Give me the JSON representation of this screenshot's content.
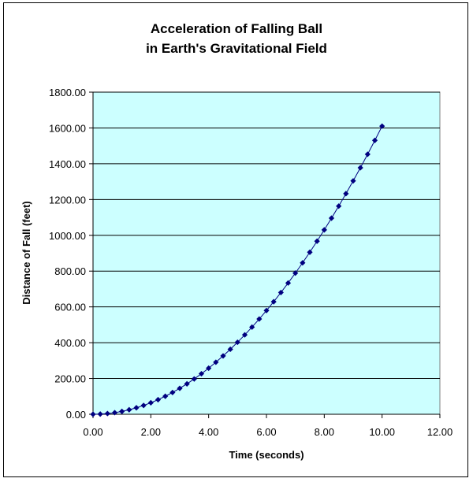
{
  "chart_data": {
    "type": "scatter",
    "title_lines": [
      "Acceleration of Falling Ball",
      "in Earth's Gravitational Field"
    ],
    "xlabel": "Time (seconds)",
    "ylabel": "Distance of Fall (feet)",
    "xlim": [
      0,
      12
    ],
    "ylim": [
      0,
      1800
    ],
    "x_ticks": [
      "0.00",
      "2.00",
      "4.00",
      "6.00",
      "8.00",
      "10.00",
      "12.00"
    ],
    "y_ticks": [
      "0.00",
      "200.00",
      "400.00",
      "600.00",
      "800.00",
      "1000.00",
      "1200.00",
      "1400.00",
      "1600.00",
      "1800.00"
    ],
    "grid": true,
    "legend": "none",
    "colors": {
      "plot_background": "#ccffff",
      "marker": "#000080",
      "line": "#000080",
      "gridline": "#000000"
    },
    "series": [
      {
        "x": [
          0,
          0.25,
          0.5,
          0.75,
          1,
          1.25,
          1.5,
          1.75,
          2,
          2.25,
          2.5,
          2.75,
          3,
          3.25,
          3.5,
          3.75,
          4,
          4.25,
          4.5,
          4.75,
          5,
          5.25,
          5.5,
          5.75,
          6,
          6.25,
          6.5,
          6.75,
          7,
          7.25,
          7.5,
          7.75,
          8,
          8.25,
          8.5,
          8.75,
          9,
          9.25,
          9.5,
          9.75,
          10
        ],
        "y": [
          0,
          1.01,
          4.03,
          9.06,
          16.1,
          25.16,
          36.23,
          49.31,
          64.4,
          81.51,
          100.63,
          121.76,
          144.9,
          170.06,
          197.23,
          226.41,
          257.6,
          290.81,
          326.03,
          363.26,
          402.5,
          443.76,
          487.03,
          532.31,
          579.6,
          628.91,
          680.23,
          733.56,
          788.9,
          846.26,
          905.63,
          967.01,
          1030.4,
          1095.81,
          1163.23,
          1232.66,
          1304.1,
          1377.56,
          1453.03,
          1530.51,
          1610
        ]
      }
    ]
  }
}
